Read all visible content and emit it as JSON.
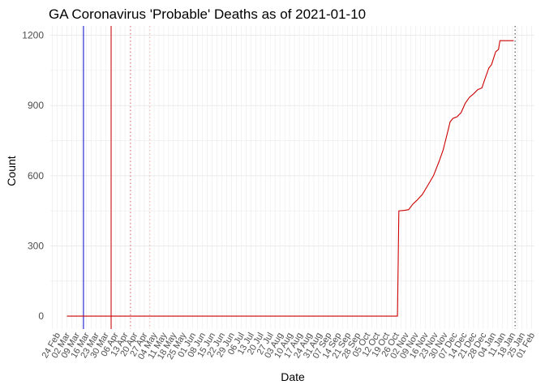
{
  "chart_data": {
    "type": "line",
    "title": "GA Coronavirus 'Probable' Deaths as of 2021-01-10",
    "xlabel": "Date",
    "ylabel": "Count",
    "x_range": [
      "2020-02-19",
      "2021-02-03"
    ],
    "ylim": [
      -55,
      1240
    ],
    "yticks": [
      0,
      300,
      600,
      900,
      1200
    ],
    "xticks": [
      "24 Feb",
      "02 Mar",
      "09 Mar",
      "16 Mar",
      "23 Mar",
      "30 Mar",
      "06 Apr",
      "13 Apr",
      "20 Apr",
      "27 Apr",
      "04 May",
      "11 May",
      "18 May",
      "25 May",
      "01 Jun",
      "08 Jun",
      "15 Jun",
      "22 Jun",
      "29 Jun",
      "06 Jul",
      "13 Jul",
      "20 Jul",
      "27 Jul",
      "03 Aug",
      "10 Aug",
      "17 Aug",
      "24 Aug",
      "31 Aug",
      "07 Sep",
      "14 Sep",
      "21 Sep",
      "28 Sep",
      "05 Oct",
      "12 Oct",
      "19 Oct",
      "26 Oct",
      "02 Nov",
      "09 Nov",
      "16 Nov",
      "23 Nov",
      "30 Nov",
      "07 Dec",
      "14 Dec",
      "21 Dec",
      "28 Dec",
      "04 Jan",
      "11 Jan",
      "18 Jan",
      "25 Jan",
      "01 Feb"
    ],
    "grid": true,
    "legend": "none",
    "series": [
      {
        "color": "#cc0000",
        "points": [
          [
            "2020-03-02",
            0
          ],
          [
            "2020-10-27",
            0
          ],
          [
            "2020-10-28",
            450
          ],
          [
            "2020-11-01",
            452
          ],
          [
            "2020-11-04",
            455
          ],
          [
            "2020-11-07",
            478
          ],
          [
            "2020-11-10",
            495
          ],
          [
            "2020-11-14",
            520
          ],
          [
            "2020-11-18",
            560
          ],
          [
            "2020-11-22",
            600
          ],
          [
            "2020-11-26",
            660
          ],
          [
            "2020-11-29",
            710
          ],
          [
            "2020-12-02",
            780
          ],
          [
            "2020-12-04",
            830
          ],
          [
            "2020-12-06",
            845
          ],
          [
            "2020-12-09",
            852
          ],
          [
            "2020-12-12",
            870
          ],
          [
            "2020-12-15",
            910
          ],
          [
            "2020-12-18",
            935
          ],
          [
            "2020-12-21",
            950
          ],
          [
            "2020-12-24",
            968
          ],
          [
            "2020-12-27",
            975
          ],
          [
            "2020-12-29",
            1010
          ],
          [
            "2021-01-01",
            1060
          ],
          [
            "2021-01-03",
            1075
          ],
          [
            "2021-01-06",
            1130
          ],
          [
            "2021-01-08",
            1140
          ],
          [
            "2021-01-09",
            1177
          ],
          [
            "2021-01-19",
            1177
          ]
        ]
      }
    ],
    "reference_lines": [
      {
        "x": "2020-03-14",
        "color": "#0000cc",
        "style": "solid"
      },
      {
        "x": "2020-04-03",
        "color": "#cc0000",
        "style": "solid"
      },
      {
        "x": "2020-04-17",
        "color": "#e06060",
        "style": "dotted"
      },
      {
        "x": "2020-05-01",
        "color": "#f2b0b0",
        "style": "dotted"
      },
      {
        "x": "2021-01-20",
        "color": "#333333",
        "style": "dotted"
      }
    ]
  }
}
